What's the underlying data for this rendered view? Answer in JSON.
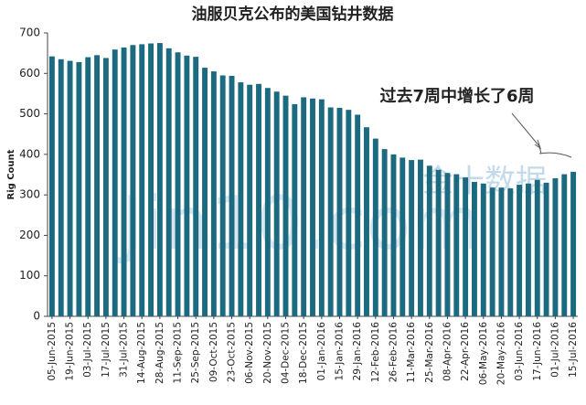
{
  "chart_data": {
    "type": "bar",
    "title": "油服贝克公布的美国钻井数据",
    "y_label": "Rig Count",
    "annotation": "过去7周中增长了6周",
    "watermark": [
      "金十数据",
      "Jin10.com"
    ],
    "color": "#1c6a80",
    "categories": [
      "05-Jun-2015",
      null,
      "19-Jun-2015",
      null,
      "03-Jul-2015",
      null,
      "17-Jul-2015",
      null,
      "31-Jul-2015",
      null,
      "14-Aug-2015",
      null,
      "28-Aug-2015",
      null,
      "11-Sep-2015",
      null,
      "25-Sep-2015",
      null,
      "09-Oct-2015",
      null,
      "23-Oct-2015",
      null,
      "06-Nov-2015",
      null,
      "20-Nov-2015",
      null,
      "04-Dec-2015",
      null,
      "18-Dec-2015",
      null,
      "01-Jan-2016",
      null,
      "15-Jan-2016",
      null,
      "29-Jan-2016",
      null,
      "12-Feb-2016",
      null,
      "26-Feb-2016",
      null,
      "11-Mar-2016",
      null,
      "25-Mar-2016",
      null,
      "08-Apr-2016",
      null,
      "22-Apr-2016",
      null,
      "06-May-2016",
      null,
      "20-May-2016",
      null,
      "03-Jun-2016",
      null,
      "17-Jun-2016",
      null,
      "01-Jul-2016",
      null,
      "15-Jul-2016"
    ],
    "values": [
      642,
      635,
      631,
      628,
      640,
      645,
      638,
      659,
      664,
      670,
      672,
      674,
      675,
      662,
      652,
      644,
      641,
      614,
      605,
      595,
      594,
      578,
      572,
      574,
      564,
      555,
      545,
      524,
      541,
      538,
      536,
      516,
      515,
      510,
      498,
      467,
      439,
      413,
      400,
      392,
      386,
      387,
      372,
      362,
      354,
      351,
      343,
      332,
      328,
      318,
      318,
      316,
      325,
      328,
      337,
      330,
      341,
      351,
      357
    ],
    "ylim": [
      0,
      700
    ],
    "yticks": [
      0,
      100,
      200,
      300,
      400,
      500,
      600,
      700
    ]
  }
}
